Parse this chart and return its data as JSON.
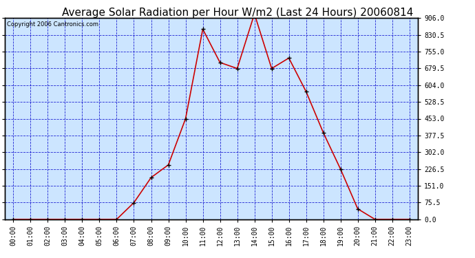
{
  "title": "Average Solar Radiation per Hour W/m2 (Last 24 Hours) 20060814",
  "copyright": "Copyright 2006 Cantronics.com",
  "hours": [
    "00:00",
    "01:00",
    "02:00",
    "03:00",
    "04:00",
    "05:00",
    "06:00",
    "07:00",
    "08:00",
    "09:00",
    "10:00",
    "11:00",
    "12:00",
    "13:00",
    "14:00",
    "15:00",
    "16:00",
    "17:00",
    "18:00",
    "19:00",
    "20:00",
    "21:00",
    "22:00",
    "23:00"
  ],
  "values": [
    0,
    0,
    0,
    0,
    0,
    0,
    0,
    75,
    188,
    245,
    453,
    856,
    706,
    679,
    925,
    679,
    726,
    575,
    390,
    226,
    47,
    0,
    0,
    0
  ],
  "y_ticks": [
    0.0,
    75.5,
    151.0,
    226.5,
    302.0,
    377.5,
    453.0,
    528.5,
    604.0,
    679.5,
    755.0,
    830.5,
    906.0
  ],
  "ymax": 906.0,
  "ymin": 0.0,
  "line_color": "#cc0000",
  "marker_color": "#000000",
  "bg_color": "#cce5ff",
  "grid_color": "#0000cc",
  "title_fontsize": 11,
  "copyright_fontsize": 6,
  "tick_fontsize": 7,
  "border_color": "#000000"
}
